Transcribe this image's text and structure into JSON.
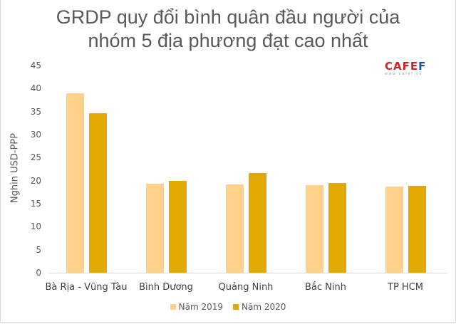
{
  "chart_data": {
    "type": "bar",
    "title": "GRDP quy đổi bình quân đầu người của nhóm 5 địa phương đạt cao nhất",
    "title_lines": [
      "GRDP quy đổi bình quân đầu người của",
      "nhóm 5 địa phương đạt cao nhất"
    ],
    "xlabel": "",
    "ylabel": "Nghìn USD-PPP",
    "ylim": [
      0,
      45
    ],
    "yticks": [
      0,
      5,
      10,
      15,
      20,
      25,
      30,
      35,
      40,
      45
    ],
    "grid": false,
    "legend_position": "bottom",
    "categories": [
      "Bà Rịa - Vũng Tàu",
      "Bình Dương",
      "Quảng Ninh",
      "Bắc Ninh",
      "TP HCM"
    ],
    "series": [
      {
        "name": "Năm 2019",
        "color": "#ffd18a",
        "values": [
          38.9,
          19.3,
          19.2,
          19.0,
          18.7
        ]
      },
      {
        "name": "Năm 2020",
        "color": "#e2aa00",
        "values": [
          34.6,
          19.9,
          21.6,
          19.5,
          18.9
        ]
      }
    ]
  },
  "logo": {
    "main_a": "CAFE",
    "main_b": "F",
    "sub": "www.cafef.vn"
  }
}
